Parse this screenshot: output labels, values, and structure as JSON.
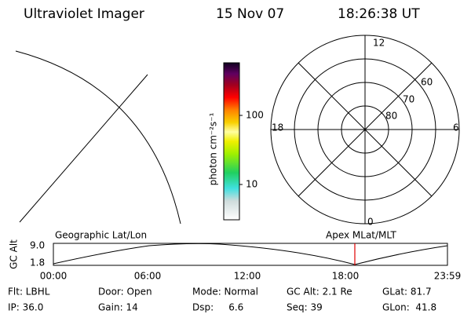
{
  "header": {
    "title": "Ultraviolet Imager",
    "date": "15 Nov 07",
    "time": "18:26:38 UT"
  },
  "colorbar": {
    "label": "photon cm⁻²s⁻¹",
    "ticks": [
      "100",
      "10"
    ]
  },
  "polar": {
    "hour_labels": [
      "12",
      "18",
      "6",
      "0"
    ],
    "lat_labels": [
      "60",
      "70",
      "80"
    ]
  },
  "timeline": {
    "left_label": "Geographic Lat/Lon",
    "right_label": "Apex MLat/MLT",
    "y_label": "GC Alt",
    "y_ticks": [
      "9.0",
      "1.8"
    ],
    "x_ticks": [
      "00:00",
      "06:00",
      "12:00",
      "18:00",
      "23:59"
    ]
  },
  "info": {
    "rows": [
      [
        "Flt: LBHL",
        "Door: Open",
        "Mode: Normal",
        "GC Alt: 2.1 Re",
        "GLat: 81.7"
      ],
      [
        "IP: 36.0",
        "Gain: 14",
        "Dsp:     6.6",
        "Seq: 39",
        "GLon:  41.8"
      ]
    ]
  }
}
